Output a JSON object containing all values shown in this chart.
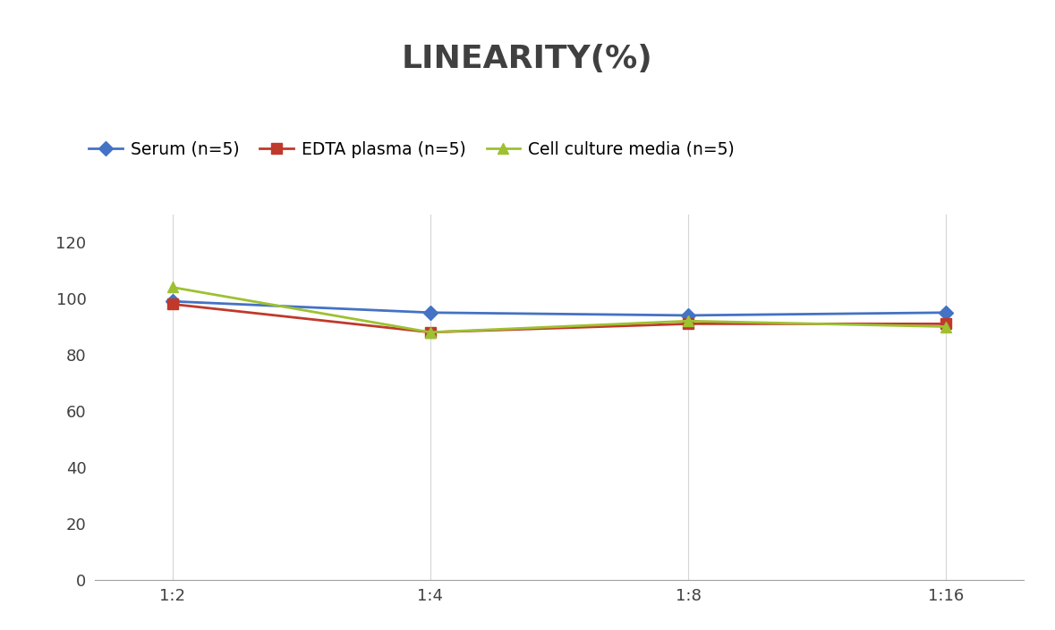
{
  "title": "LINEARITY(%)",
  "x_labels": [
    "1:2",
    "1:4",
    "1:8",
    "1:16"
  ],
  "series": [
    {
      "label": "Serum (n=5)",
      "values": [
        99,
        95,
        94,
        95
      ],
      "color": "#4472C4",
      "marker": "D"
    },
    {
      "label": "EDTA plasma (n=5)",
      "values": [
        98,
        88,
        91,
        91
      ],
      "color": "#C0392B",
      "marker": "s"
    },
    {
      "label": "Cell culture media (n=5)",
      "values": [
        104,
        88,
        92,
        90
      ],
      "color": "#9DC131",
      "marker": "^"
    }
  ],
  "ylim": [
    0,
    130
  ],
  "yticks": [
    0,
    20,
    40,
    60,
    80,
    100,
    120
  ],
  "background_color": "#FFFFFF",
  "grid_color": "#D5D5D5",
  "title_fontsize": 26,
  "legend_fontsize": 13.5,
  "tick_fontsize": 13,
  "linewidth": 2.0,
  "markersize": 8,
  "title_color": "#404040"
}
